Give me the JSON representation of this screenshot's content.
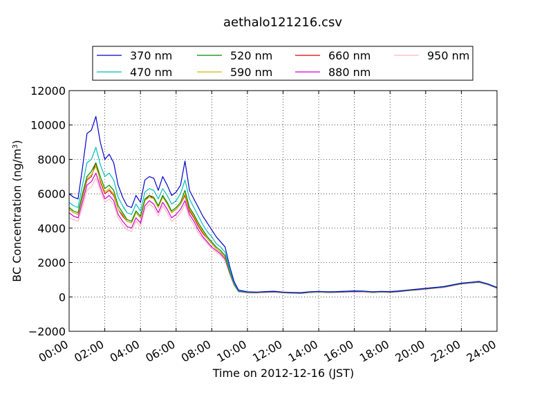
{
  "chart_data": {
    "type": "line",
    "title": "aethalo121216.csv",
    "xlabel": "Time on 2012-12-16 (JST)",
    "ylabel": "BC Concentration (ng/m",
    "ylabel_sup": "3",
    "ylabel_end": ")",
    "xlim": [
      0,
      24
    ],
    "ylim": [
      -2000,
      12000
    ],
    "grid": true,
    "legend_position": "top",
    "x_ticks": [
      0,
      2,
      4,
      6,
      8,
      10,
      12,
      14,
      16,
      18,
      20,
      22,
      24
    ],
    "x_tick_labels": [
      "00:00",
      "02:00",
      "04:00",
      "06:00",
      "08:00",
      "10:00",
      "12:00",
      "14:00",
      "16:00",
      "18:00",
      "20:00",
      "22:00",
      "24:00"
    ],
    "y_ticks": [
      -2000,
      0,
      2000,
      4000,
      6000,
      8000,
      10000,
      12000
    ],
    "y_tick_labels": [
      "−2000",
      "0",
      "2000",
      "4000",
      "6000",
      "8000",
      "10000",
      "12000"
    ],
    "x": [
      0,
      0.25,
      0.5,
      0.75,
      1,
      1.25,
      1.5,
      1.75,
      2,
      2.25,
      2.5,
      2.75,
      3,
      3.25,
      3.5,
      3.75,
      4,
      4.25,
      4.5,
      4.75,
      5,
      5.25,
      5.5,
      5.75,
      6,
      6.25,
      6.5,
      6.75,
      7,
      7.25,
      7.5,
      7.75,
      8,
      8.25,
      8.5,
      8.75,
      9,
      9.25,
      9.5,
      9.75,
      10,
      10.5,
      11,
      11.5,
      12,
      12.5,
      13,
      13.5,
      14,
      14.5,
      15,
      15.5,
      16,
      16.5,
      17,
      17.5,
      18,
      18.5,
      19,
      19.5,
      20,
      20.5,
      21,
      21.5,
      22,
      22.5,
      23,
      23.5,
      24
    ],
    "series": [
      {
        "name": "370 nm",
        "color": "#0000cc",
        "values": [
          6000,
          5800,
          5700,
          7500,
          9500,
          9700,
          10500,
          9000,
          8000,
          8300,
          7800,
          6500,
          5800,
          5300,
          5200,
          5900,
          5500,
          6800,
          7000,
          6900,
          6200,
          7000,
          6500,
          5900,
          6100,
          6500,
          7900,
          6200,
          5700,
          5200,
          4700,
          4300,
          3900,
          3500,
          3200,
          2900,
          1800,
          900,
          400,
          350,
          300,
          280,
          310,
          330,
          280,
          260,
          250,
          300,
          320,
          300,
          310,
          330,
          350,
          340,
          300,
          320,
          310,
          350,
          400,
          450,
          500,
          550,
          600,
          700,
          800,
          850,
          900,
          750,
          550
        ]
      },
      {
        "name": "470 nm",
        "color": "#00bbbb",
        "values": [
          5500,
          5300,
          5200,
          6500,
          7800,
          8000,
          8700,
          7700,
          7000,
          7200,
          6800,
          5800,
          5300,
          4900,
          4800,
          5400,
          5000,
          6100,
          6300,
          6200,
          5700,
          6300,
          5900,
          5400,
          5600,
          6000,
          6800,
          5700,
          5200,
          4700,
          4200,
          3800,
          3500,
          3100,
          2900,
          2600,
          1600,
          800,
          350,
          320,
          280,
          270,
          300,
          320,
          270,
          250,
          240,
          290,
          310,
          290,
          300,
          320,
          340,
          330,
          290,
          310,
          300,
          340,
          390,
          440,
          490,
          540,
          590,
          690,
          790,
          840,
          880,
          740,
          540
        ]
      },
      {
        "name": "520 nm",
        "color": "#008800",
        "values": [
          5200,
          5000,
          4900,
          6000,
          7000,
          7300,
          7800,
          7000,
          6300,
          6500,
          6200,
          5300,
          4900,
          4500,
          4400,
          5000,
          4700,
          5700,
          5900,
          5800,
          5300,
          5900,
          5500,
          5000,
          5200,
          5500,
          6200,
          5200,
          4800,
          4300,
          3900,
          3500,
          3200,
          2900,
          2700,
          2400,
          1500,
          750,
          330,
          300,
          270,
          260,
          290,
          310,
          260,
          240,
          230,
          280,
          300,
          280,
          290,
          310,
          330,
          320,
          280,
          300,
          290,
          330,
          380,
          430,
          480,
          530,
          580,
          680,
          780,
          830,
          870,
          730,
          530
        ]
      },
      {
        "name": "590 nm",
        "color": "#ccbb00",
        "values": [
          5100,
          4900,
          4800,
          5900,
          6900,
          7100,
          7600,
          6800,
          6100,
          6300,
          6000,
          5100,
          4800,
          4400,
          4300,
          4900,
          4600,
          5600,
          5800,
          5700,
          5200,
          5800,
          5400,
          4900,
          5100,
          5400,
          6000,
          5100,
          4700,
          4200,
          3800,
          3400,
          3100,
          2800,
          2600,
          2300,
          1450,
          720,
          320,
          290,
          260,
          250,
          280,
          300,
          250,
          230,
          220,
          270,
          290,
          270,
          280,
          300,
          320,
          310,
          270,
          290,
          280,
          320,
          370,
          420,
          470,
          520,
          570,
          670,
          770,
          820,
          860,
          720,
          520
        ]
      },
      {
        "name": "660 nm",
        "color": "#dd0000",
        "values": [
          5100,
          4900,
          4800,
          5800,
          6800,
          7000,
          7800,
          6700,
          6000,
          6200,
          5900,
          5100,
          4700,
          4400,
          4300,
          4900,
          4600,
          5600,
          5900,
          5700,
          5200,
          5900,
          5400,
          4900,
          5100,
          5400,
          5900,
          5000,
          4600,
          4100,
          3700,
          3400,
          3100,
          2800,
          2600,
          2300,
          1450,
          720,
          320,
          290,
          260,
          250,
          280,
          300,
          250,
          230,
          220,
          270,
          290,
          270,
          280,
          300,
          320,
          310,
          270,
          290,
          280,
          320,
          370,
          420,
          470,
          520,
          570,
          670,
          770,
          820,
          860,
          720,
          520
        ]
      },
      {
        "name": "880 nm",
        "color": "#cc00cc",
        "values": [
          4900,
          4700,
          4600,
          5500,
          6500,
          6700,
          7200,
          6400,
          5700,
          5900,
          5600,
          4800,
          4400,
          4100,
          4000,
          4600,
          4300,
          5300,
          5600,
          5400,
          4900,
          5500,
          5100,
          4600,
          4800,
          5100,
          5600,
          4800,
          4400,
          3900,
          3500,
          3200,
          2900,
          2700,
          2500,
          2200,
          1400,
          700,
          310,
          280,
          250,
          240,
          270,
          290,
          240,
          220,
          210,
          260,
          280,
          260,
          270,
          290,
          310,
          300,
          260,
          280,
          270,
          310,
          360,
          410,
          460,
          510,
          560,
          660,
          760,
          810,
          850,
          710,
          510
        ]
      },
      {
        "name": "950 nm",
        "color": "#ffb6c1",
        "values": [
          4600,
          4500,
          4400,
          5200,
          6200,
          6400,
          6900,
          6200,
          5500,
          5700,
          5400,
          4600,
          4200,
          3900,
          3800,
          4400,
          4100,
          5100,
          5400,
          5200,
          4700,
          5300,
          4900,
          4400,
          4600,
          4900,
          5400,
          4600,
          4200,
          3700,
          3400,
          3100,
          2800,
          2600,
          2400,
          2100,
          1350,
          680,
          300,
          270,
          240,
          230,
          260,
          280,
          230,
          210,
          200,
          250,
          270,
          250,
          260,
          280,
          300,
          290,
          250,
          270,
          260,
          300,
          350,
          400,
          450,
          500,
          550,
          650,
          750,
          800,
          840,
          700,
          500
        ]
      }
    ]
  }
}
